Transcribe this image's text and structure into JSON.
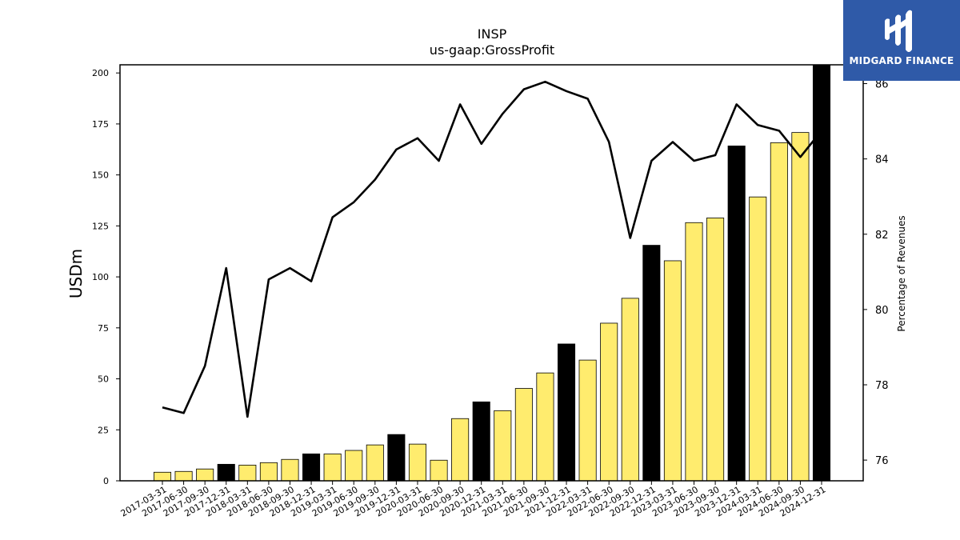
{
  "chart_data": {
    "type": "bar",
    "title": "INSP",
    "subtitle": "us-gaap:GrossProfit",
    "ylabel": "USDm",
    "y2label": "Percentage of Revenues",
    "ylim": [
      0,
      204
    ],
    "y2lim": [
      75.45,
      86.5
    ],
    "yticks": [
      "0",
      "25",
      "50",
      "75",
      "100",
      "125",
      "150",
      "175",
      "200"
    ],
    "y2ticks": [
      "76",
      "78",
      "80",
      "82",
      "84",
      "86"
    ],
    "bar_color": "#ffec6e",
    "highlight_color": "#000000",
    "line_color": "#000000",
    "categories": [
      "2017-03-31",
      "2017-06-30",
      "2017-09-30",
      "2017-12-31",
      "2018-03-31",
      "2018-06-30",
      "2018-09-30",
      "2018-12-31",
      "2019-03-31",
      "2019-06-30",
      "2019-09-30",
      "2019-12-31",
      "2020-03-31",
      "2020-06-30",
      "2020-09-30",
      "2020-12-31",
      "2021-03-31",
      "2021-06-30",
      "2021-09-30",
      "2021-12-31",
      "2022-03-31",
      "2022-06-30",
      "2022-09-30",
      "2022-12-31",
      "2023-03-31",
      "2023-06-30",
      "2023-09-30",
      "2023-12-31",
      "2024-03-31",
      "2024-06-30",
      "2024-09-30",
      "2024-12-31"
    ],
    "series": [
      {
        "type": "bar",
        "values": [
          4.2,
          4.6,
          5.8,
          8.1,
          7.7,
          8.9,
          10.5,
          13.2,
          13.2,
          14.9,
          17.6,
          22.7,
          18.0,
          10.1,
          30.5,
          38.7,
          34.4,
          45.3,
          52.9,
          67.1,
          59.2,
          77.3,
          89.5,
          115.5,
          107.9,
          126.6,
          128.9,
          164.2,
          139.2,
          165.8,
          170.8,
          204.0
        ],
        "highlight": [
          false,
          false,
          false,
          true,
          false,
          false,
          false,
          true,
          false,
          false,
          false,
          true,
          false,
          false,
          false,
          true,
          false,
          false,
          false,
          true,
          false,
          false,
          false,
          true,
          false,
          false,
          false,
          true,
          false,
          false,
          false,
          true
        ]
      },
      {
        "type": "line",
        "axis": "right",
        "values": [
          77.4,
          77.25,
          78.5,
          81.1,
          77.15,
          80.8,
          81.1,
          80.75,
          82.45,
          82.85,
          83.45,
          84.25,
          84.55,
          83.95,
          85.45,
          84.4,
          85.2,
          85.85,
          86.05,
          85.8,
          85.6,
          84.45,
          81.9,
          83.95,
          84.45,
          83.95,
          84.1,
          85.45,
          84.9,
          84.75,
          84.05,
          84.75
        ]
      }
    ]
  },
  "logo": {
    "text": "MIDGARD FINANCE"
  }
}
